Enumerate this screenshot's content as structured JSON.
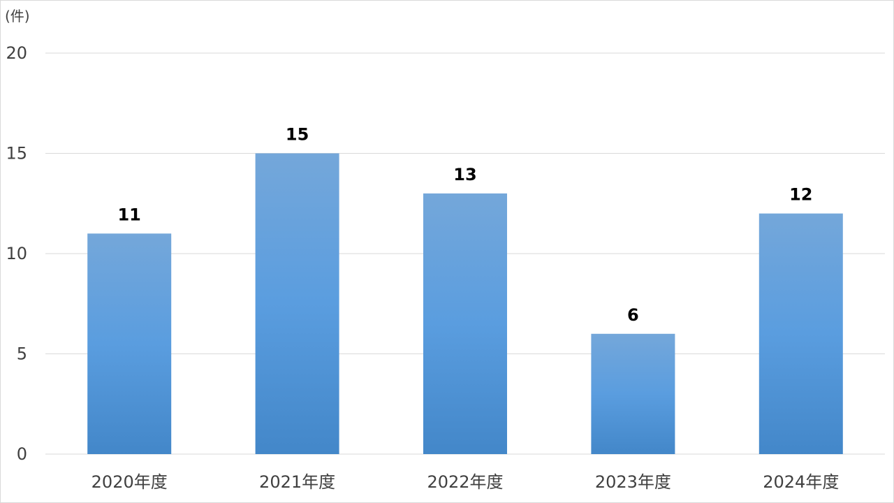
{
  "chart_data": {
    "type": "bar",
    "unit_label": "(件)",
    "categories": [
      "2020年度",
      "2021年度",
      "2022年度",
      "2023年度",
      "2024年度"
    ],
    "values": [
      11,
      15,
      13,
      6,
      12
    ],
    "data_labels": [
      "11",
      "15",
      "13",
      "6",
      "12"
    ],
    "ylim": [
      0,
      20
    ],
    "yticks": [
      0,
      5,
      10,
      15,
      20
    ],
    "ytick_labels": [
      "0",
      "5",
      "10",
      "15",
      "20"
    ],
    "grid": true,
    "bar_color_top": "#74a7da",
    "bar_color_mid": "#5a9ddf",
    "bar_color_bottom": "#4387c9"
  }
}
